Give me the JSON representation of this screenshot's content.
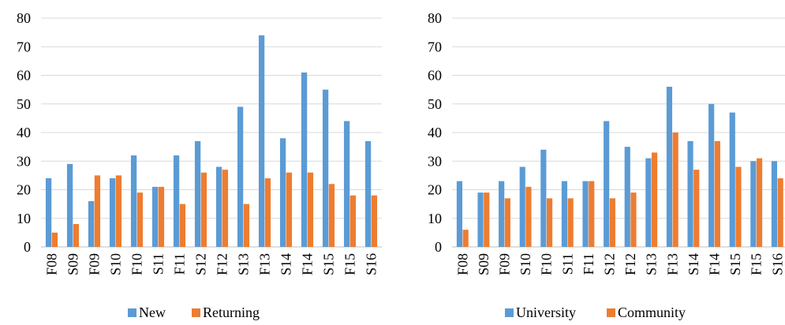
{
  "chart_data": [
    {
      "type": "bar",
      "categories": [
        "F08",
        "S09",
        "F09",
        "S10",
        "F10",
        "S11",
        "F11",
        "S12",
        "F12",
        "S13",
        "F13",
        "S14",
        "F14",
        "S15",
        "F15",
        "S16"
      ],
      "series": [
        {
          "name": "New",
          "values": [
            24,
            29,
            16,
            24,
            32,
            21,
            32,
            37,
            28,
            49,
            74,
            38,
            61,
            55,
            44,
            37
          ]
        },
        {
          "name": "Returning",
          "values": [
            5,
            8,
            25,
            25,
            19,
            21,
            15,
            26,
            27,
            15,
            24,
            26,
            26,
            22,
            18,
            18
          ]
        }
      ],
      "ylim": [
        0,
        80
      ],
      "yticks": [
        0,
        10,
        20,
        30,
        40,
        50,
        60,
        70,
        80
      ],
      "grid": true,
      "legend": "bottom"
    },
    {
      "type": "bar",
      "categories": [
        "F08",
        "S09",
        "F09",
        "S10",
        "F10",
        "S11",
        "F11",
        "S12",
        "F12",
        "S13",
        "F13",
        "S14",
        "F14",
        "S15",
        "F15",
        "S16"
      ],
      "series": [
        {
          "name": "University",
          "values": [
            23,
            19,
            23,
            28,
            34,
            23,
            23,
            44,
            35,
            31,
            56,
            37,
            50,
            47,
            30,
            30
          ]
        },
        {
          "name": "Community",
          "values": [
            6,
            19,
            17,
            21,
            17,
            17,
            23,
            17,
            19,
            33,
            40,
            27,
            37,
            28,
            31,
            24
          ]
        }
      ],
      "ylim": [
        0,
        80
      ],
      "yticks": [
        0,
        10,
        20,
        30,
        40,
        50,
        60,
        70,
        80
      ],
      "grid": true,
      "legend": "bottom"
    }
  ],
  "colors": {
    "series1": "#5B9BD5",
    "series2": "#ED7D31",
    "grid": "#D9D9D9"
  }
}
